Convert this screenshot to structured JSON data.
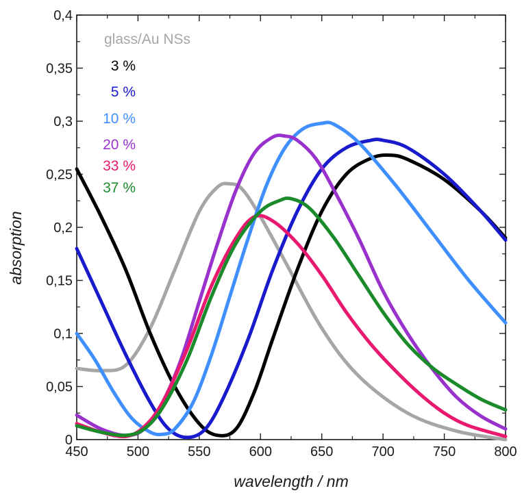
{
  "chart_data": {
    "type": "line",
    "xlabel": "wavelength / nm",
    "ylabel": "absorption",
    "xlim": [
      450,
      800
    ],
    "ylim": [
      0,
      0.4
    ],
    "x_ticks": [
      "450",
      "500",
      "550",
      "600",
      "650",
      "700",
      "750",
      "800"
    ],
    "y_ticks": [
      "0",
      "0,05",
      "0,1",
      "0,15",
      "0,2",
      "0,25",
      "0,3",
      "0,35",
      "0,4"
    ],
    "grid": false,
    "legend_position": "top-left",
    "series": [
      {
        "name": "glass/Au NSs",
        "color": "#a6a6a6",
        "x": [
          450,
          470,
          490,
          510,
          530,
          550,
          565,
          575,
          585,
          600,
          620,
          650,
          680,
          720,
          760,
          800
        ],
        "y": [
          0.067,
          0.065,
          0.07,
          0.105,
          0.16,
          0.215,
          0.238,
          0.241,
          0.236,
          0.21,
          0.168,
          0.105,
          0.06,
          0.025,
          0.008,
          0.0
        ]
      },
      {
        "name": "3 %",
        "color": "#000000",
        "x": [
          450,
          470,
          490,
          510,
          530,
          550,
          565,
          580,
          595,
          610,
          630,
          650,
          670,
          690,
          705,
          720,
          750,
          780,
          800
        ],
        "y": [
          0.255,
          0.21,
          0.16,
          0.1,
          0.05,
          0.015,
          0.004,
          0.01,
          0.045,
          0.095,
          0.16,
          0.215,
          0.25,
          0.265,
          0.268,
          0.264,
          0.245,
          0.215,
          0.19
        ]
      },
      {
        "name": "5 %",
        "color": "#1a1acd",
        "x": [
          450,
          470,
          490,
          510,
          525,
          540,
          555,
          570,
          590,
          610,
          630,
          650,
          670,
          690,
          700,
          720,
          750,
          780,
          800
        ],
        "y": [
          0.18,
          0.13,
          0.08,
          0.035,
          0.01,
          0.002,
          0.01,
          0.04,
          0.095,
          0.16,
          0.215,
          0.255,
          0.275,
          0.282,
          0.282,
          0.275,
          0.25,
          0.215,
          0.188
        ]
      },
      {
        "name": "10 %",
        "color": "#3f8fff",
        "x": [
          450,
          465,
          480,
          495,
          510,
          520,
          530,
          545,
          560,
          575,
          590,
          605,
          620,
          635,
          650,
          660,
          680,
          710,
          740,
          770,
          800
        ],
        "y": [
          0.1,
          0.075,
          0.045,
          0.02,
          0.007,
          0.005,
          0.01,
          0.035,
          0.08,
          0.135,
          0.19,
          0.24,
          0.275,
          0.293,
          0.298,
          0.297,
          0.28,
          0.24,
          0.195,
          0.15,
          0.11
        ]
      },
      {
        "name": "20 %",
        "color": "#9932cc",
        "x": [
          450,
          470,
          490,
          505,
          520,
          535,
          550,
          565,
          580,
          595,
          610,
          620,
          630,
          645,
          660,
          680,
          700,
          720,
          740,
          760,
          780,
          800
        ],
        "y": [
          0.023,
          0.01,
          0.004,
          0.01,
          0.035,
          0.075,
          0.13,
          0.185,
          0.235,
          0.27,
          0.285,
          0.286,
          0.282,
          0.265,
          0.235,
          0.19,
          0.14,
          0.1,
          0.067,
          0.04,
          0.022,
          0.01
        ]
      },
      {
        "name": "33 %",
        "color": "#e8196e",
        "x": [
          450,
          470,
          490,
          505,
          520,
          540,
          560,
          580,
          595,
          610,
          630,
          650,
          670,
          690,
          710,
          730,
          750,
          770,
          800
        ],
        "y": [
          0.015,
          0.007,
          0.003,
          0.012,
          0.035,
          0.085,
          0.145,
          0.19,
          0.21,
          0.206,
          0.185,
          0.155,
          0.12,
          0.09,
          0.065,
          0.043,
          0.025,
          0.013,
          0.003
        ]
      },
      {
        "name": "37 %",
        "color": "#1a8a2a",
        "x": [
          450,
          470,
          490,
          505,
          520,
          540,
          560,
          580,
          600,
          615,
          625,
          640,
          660,
          680,
          700,
          720,
          740,
          760,
          780,
          800
        ],
        "y": [
          0.013,
          0.007,
          0.004,
          0.01,
          0.03,
          0.075,
          0.135,
          0.185,
          0.215,
          0.225,
          0.227,
          0.218,
          0.19,
          0.155,
          0.12,
          0.09,
          0.068,
          0.052,
          0.038,
          0.028
        ]
      }
    ]
  }
}
